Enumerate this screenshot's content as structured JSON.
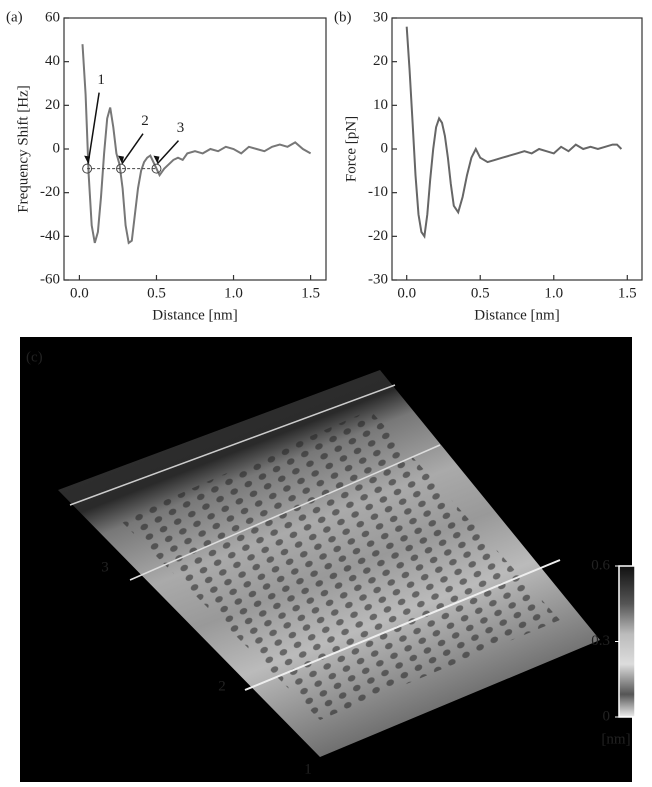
{
  "chart_data": [
    {
      "type": "line",
      "panel": "(a)",
      "xlabel": "Distance [nm]",
      "ylabel": "Frequency Shift [Hz]",
      "color": "#777777",
      "x": [
        0.02,
        0.04,
        0.06,
        0.08,
        0.1,
        0.12,
        0.14,
        0.16,
        0.18,
        0.2,
        0.22,
        0.24,
        0.26,
        0.28,
        0.3,
        0.32,
        0.34,
        0.36,
        0.38,
        0.4,
        0.42,
        0.44,
        0.46,
        0.48,
        0.5,
        0.52,
        0.55,
        0.58,
        0.61,
        0.64,
        0.67,
        0.7,
        0.75,
        0.8,
        0.85,
        0.9,
        0.95,
        1.0,
        1.05,
        1.1,
        1.15,
        1.2,
        1.25,
        1.3,
        1.35,
        1.4,
        1.45,
        1.5
      ],
      "values": [
        48,
        25,
        -12,
        -35,
        -43,
        -38,
        -22,
        -2,
        14,
        19,
        10,
        -2,
        -7,
        -18,
        -35,
        -43,
        -42,
        -30,
        -18,
        -10,
        -6,
        -4,
        -3,
        -6,
        -9,
        -12,
        -9,
        -7,
        -5,
        -4,
        -5,
        -2,
        -1,
        -2,
        0,
        -1,
        1,
        0,
        -2,
        1,
        0,
        -1,
        1,
        2,
        1,
        3,
        0,
        -2
      ],
      "annotations": [
        {
          "text": "1",
          "x": 0.05,
          "y": -9
        },
        {
          "text": "2",
          "x": 0.27,
          "y": -9
        },
        {
          "text": "3",
          "x": 0.5,
          "y": -9
        }
      ],
      "xlim": [
        -0.1,
        1.6
      ],
      "xticks": [
        {
          "value": 0,
          "label": "0.0"
        },
        0.5,
        {
          "value": 1,
          "label": "1.0"
        },
        1.5
      ],
      "ylim": [
        -60,
        60
      ],
      "yticks": [
        -60,
        -40,
        -20,
        0,
        20,
        40,
        60
      ]
    },
    {
      "type": "line",
      "panel": "(b)",
      "xlabel": "Distance [nm]",
      "ylabel": "Force [pN]",
      "color": "#666666",
      "x": [
        0,
        0.02,
        0.04,
        0.06,
        0.08,
        0.1,
        0.12,
        0.14,
        0.16,
        0.18,
        0.2,
        0.22,
        0.24,
        0.26,
        0.28,
        0.3,
        0.32,
        0.35,
        0.38,
        0.41,
        0.44,
        0.47,
        0.5,
        0.55,
        0.6,
        0.65,
        0.7,
        0.75,
        0.8,
        0.85,
        0.9,
        0.95,
        1.0,
        1.05,
        1.1,
        1.15,
        1.2,
        1.25,
        1.3,
        1.35,
        1.4,
        1.43,
        1.46
      ],
      "values": [
        28,
        18,
        6,
        -6,
        -15,
        -19,
        -20,
        -15,
        -7,
        0,
        5,
        7,
        6,
        3,
        -2,
        -8,
        -13,
        -14.5,
        -11,
        -6,
        -2,
        0,
        -2,
        -3,
        -2.5,
        -2,
        -1.5,
        -1,
        -0.5,
        -1,
        0,
        -0.5,
        -1,
        0.5,
        -0.5,
        1,
        0,
        0.5,
        0,
        0.5,
        1,
        1,
        0
      ],
      "xlim": [
        -0.1,
        1.6
      ],
      "xticks": [
        {
          "value": 0,
          "label": "0.0"
        },
        0.5,
        {
          "value": 1,
          "label": "1.0"
        },
        1.5
      ],
      "ylim": [
        -30,
        30
      ],
      "yticks": [
        -30,
        -20,
        -10,
        0,
        10,
        20,
        30
      ]
    },
    {
      "type": "surface",
      "panel": "(c)",
      "labels": [
        "3",
        "2",
        "1"
      ],
      "clim": [
        0,
        0.6
      ],
      "cticks": [
        0,
        0.3,
        0.6
      ],
      "cunit": "[nm]"
    }
  ]
}
